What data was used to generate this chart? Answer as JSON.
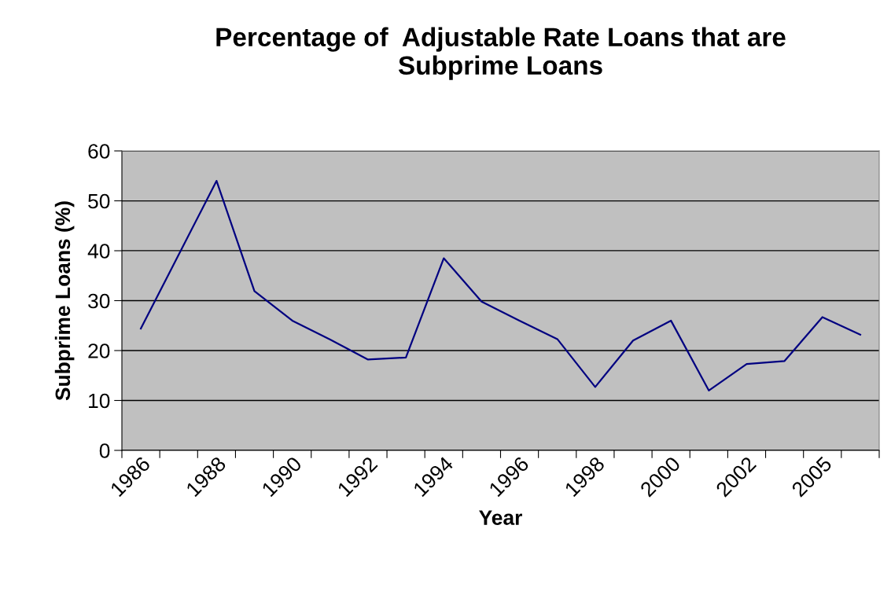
{
  "chart_data": {
    "type": "line",
    "title": "Percentage of  Adjustable Rate Loans that are\nSubprime Loans",
    "xlabel": "Year",
    "ylabel": "Subprime Loans (%)",
    "categories": [
      "1986",
      null,
      "1988",
      null,
      "1990",
      null,
      "1992",
      null,
      "1994",
      null,
      "1996",
      null,
      "1998",
      null,
      "2000",
      null,
      "2002",
      null,
      "2005",
      null
    ],
    "series": [
      {
        "color": "#000080",
        "values": [
          24.4,
          39.2,
          54.0,
          31.9,
          26.0,
          22.2,
          18.2,
          18.6,
          38.5,
          29.8,
          26.0,
          22.3,
          12.7,
          22.0,
          26.0,
          12.0,
          17.3,
          17.9,
          26.7,
          23.2
        ]
      }
    ],
    "ylim": [
      0,
      60
    ],
    "yticks": [
      0,
      10,
      20,
      30,
      40,
      50,
      60
    ],
    "grid": "y",
    "marker": "none",
    "line_style": "solid"
  }
}
